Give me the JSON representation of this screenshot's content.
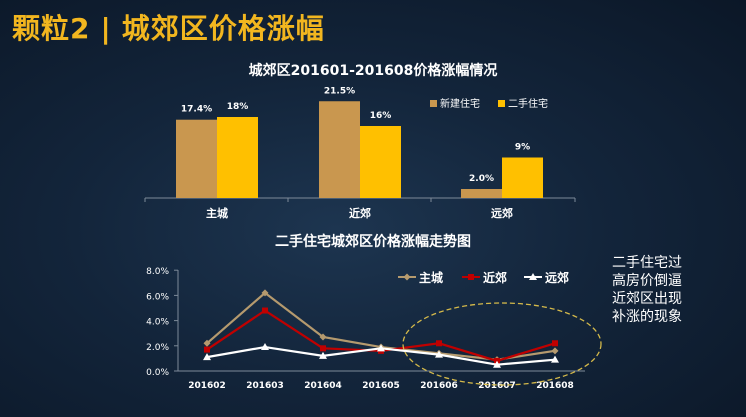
{
  "slide": {
    "title_part1": "颗粒2",
    "separator": "|",
    "title_part2": "城郊区价格涨幅"
  },
  "note_lines": [
    "二手住宅过",
    "高房价倒逼",
    "近郊区出现",
    "补涨的现象"
  ],
  "colors": {
    "background": "#13253b",
    "accent": "#f2b61f",
    "new_house": "#c9974f",
    "second_house": "#ffc000",
    "main_city_line": "#b59a6e",
    "near_suburb_line": "#c00000",
    "far_suburb_line": "#ffffff",
    "highlight_ellipse": "#d4b94a"
  },
  "chart_data": [
    {
      "type": "bar",
      "title": "城郊区201601-201608价格涨幅情况",
      "categories": [
        "主城",
        "近郊",
        "远郊"
      ],
      "series": [
        {
          "name": "新建住宅",
          "values": [
            17.4,
            21.5,
            2.0
          ],
          "labels": [
            "17.4%",
            "21.5%",
            "2.0%"
          ]
        },
        {
          "name": "二手住宅",
          "values": [
            18,
            16,
            9
          ],
          "labels": [
            "18%",
            "16%",
            "9%"
          ]
        }
      ],
      "ylim": [
        0,
        23
      ],
      "legend_position": "top-right",
      "grid": false
    },
    {
      "type": "line",
      "title": "二手住宅城郊区价格涨幅走势图",
      "categories": [
        "201602",
        "201603",
        "201604",
        "201605",
        "201606",
        "201607",
        "201608"
      ],
      "y_ticks": [
        "0.0%",
        "2.0%",
        "4.0%",
        "6.0%",
        "8.0%"
      ],
      "ylim": [
        0,
        8
      ],
      "series": [
        {
          "name": "主城",
          "values": [
            2.2,
            6.2,
            2.7,
            1.9,
            1.4,
            0.9,
            1.6
          ]
        },
        {
          "name": "近郊",
          "values": [
            1.7,
            4.8,
            1.8,
            1.6,
            2.2,
            0.8,
            2.2
          ]
        },
        {
          "name": "远郊",
          "values": [
            1.1,
            1.9,
            1.2,
            1.8,
            1.3,
            0.5,
            0.9
          ]
        }
      ],
      "legend_position": "top-right",
      "grid": false,
      "annotation": "dashed ellipse highlighting 201606–201608"
    }
  ]
}
